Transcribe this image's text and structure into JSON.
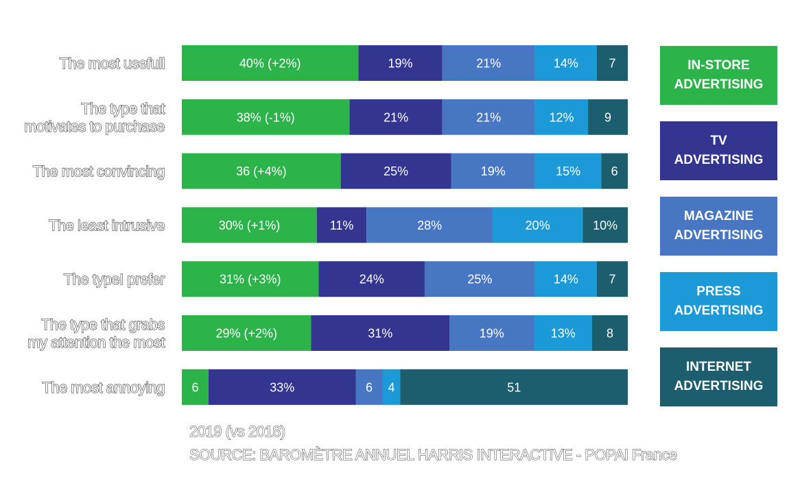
{
  "chart_data": {
    "type": "bar",
    "orientation": "horizontal",
    "stacked": true,
    "percent_stacked": true,
    "categories": [
      "The most usefull",
      "The type that motivates to purchase",
      "The most convincing",
      "The least intrusive",
      "The typeI prefer",
      "The type that grabs my attention the most",
      "The most annoying"
    ],
    "series": [
      {
        "name": "IN-STORE ADVERTISING",
        "color": "#2cb34a",
        "values": [
          40,
          38,
          36,
          30,
          31,
          29,
          6
        ],
        "labels": [
          "40% (+2%)",
          "38% (-1%)",
          "36 (+4%)",
          "30% (+1%)",
          "31% (+3%)",
          "29% (+2%)",
          "6"
        ]
      },
      {
        "name": "TV ADVERTISING",
        "color": "#333591",
        "values": [
          19,
          21,
          25,
          11,
          24,
          31,
          33
        ],
        "labels": [
          "19%",
          "21%",
          "25%",
          "11%",
          "24%",
          "31%",
          "33%"
        ]
      },
      {
        "name": "MAGAZINE ADVERTISING",
        "color": "#4776c2",
        "values": [
          21,
          21,
          19,
          28,
          25,
          19,
          6
        ],
        "labels": [
          "21%",
          "21%",
          "19%",
          "28%",
          "25%",
          "19%",
          "6"
        ]
      },
      {
        "name": "PRESS ADVERTISING",
        "color": "#1b9ad7",
        "values": [
          14,
          12,
          15,
          20,
          14,
          13,
          4
        ],
        "labels": [
          "14%",
          "12%",
          "15%",
          "20%",
          "14%",
          "13%",
          "4"
        ]
      },
      {
        "name": "INTERNET ADVERTISING",
        "color": "#1c5d6e",
        "values": [
          7,
          9,
          6,
          10,
          7,
          8,
          51
        ],
        "labels": [
          "7",
          "9",
          "6",
          "10%",
          "7",
          "8",
          "51"
        ]
      }
    ],
    "legend_placement": "right",
    "grid": false,
    "xlim": [
      0,
      100
    ]
  },
  "legend": [
    {
      "label": "IN-STORE\nADVERTISING",
      "color": "#2cb34a"
    },
    {
      "label": "TV\nADVERTISING",
      "color": "#333591"
    },
    {
      "label": "MAGAZINE\nADVERTISING",
      "color": "#4776c2"
    },
    {
      "label": "PRESS\nADVERTISING",
      "color": "#1b9ad7"
    },
    {
      "label": "INTERNET\nADVERTISING",
      "color": "#1c5d6e"
    }
  ],
  "footnote": {
    "year": "2019 (vs 2018)",
    "source": "SOURCE: BAROMÈTRE ANNUEL HARRIS INTERACTIVE - POPAI France"
  }
}
